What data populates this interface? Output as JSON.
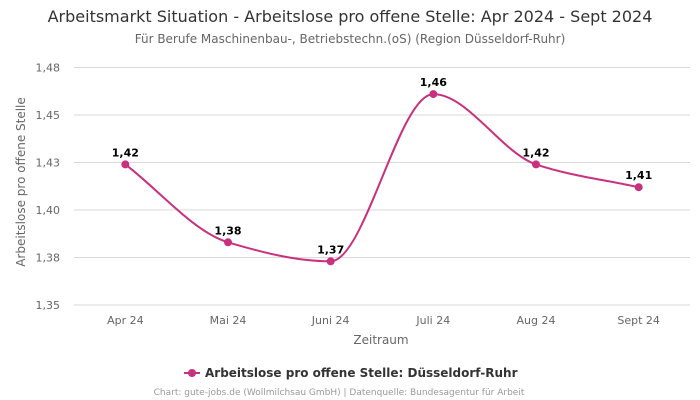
{
  "header": {
    "title": "Arbeitsmarkt Situation - Arbeitslose pro offene Stelle: Apr 2024 - Sept 2024",
    "subtitle": "Für Berufe Maschinenbau-, Betriebstechn.(oS) (Region Düsseldorf-Ruhr)"
  },
  "footer": {
    "credits": "Chart: gute-jobs.de (Wollmilchsau GmbH) | Datenquelle: Bundesagentur für Arbeit"
  },
  "colors": {
    "series": "#c9317f",
    "grid": "#d9d9d9"
  },
  "chart_data": {
    "type": "line",
    "title": "Arbeitsmarkt Situation - Arbeitslose pro offene Stelle: Apr 2024 - Sept 2024",
    "subtitle": "Für Berufe Maschinenbau-, Betriebstechn.(oS) (Region Düsseldorf-Ruhr)",
    "xlabel": "Zeitraum",
    "ylabel": "Arbeitslose pro offene Stelle",
    "categories": [
      "Apr 24",
      "Mai 24",
      "Juni 24",
      "Juli 24",
      "Aug 24",
      "Sept 24"
    ],
    "series": [
      {
        "name": "Arbeitslose pro offene Stelle: Düsseldorf-Ruhr",
        "values": [
          1.424,
          1.383,
          1.373,
          1.461,
          1.424,
          1.412
        ],
        "labels": [
          "1,42",
          "1,38",
          "1,37",
          "1,46",
          "1,42",
          "1,41"
        ]
      }
    ],
    "ylim": [
      1.35,
      1.48
    ],
    "yticks": [
      1.35,
      1.375,
      1.4,
      1.425,
      1.45,
      1.475
    ],
    "ytick_labels": [
      "1,35",
      "1,38",
      "1,40",
      "1,43",
      "1,45",
      "1,48"
    ],
    "grid": true,
    "legend_position": "bottom-center"
  }
}
